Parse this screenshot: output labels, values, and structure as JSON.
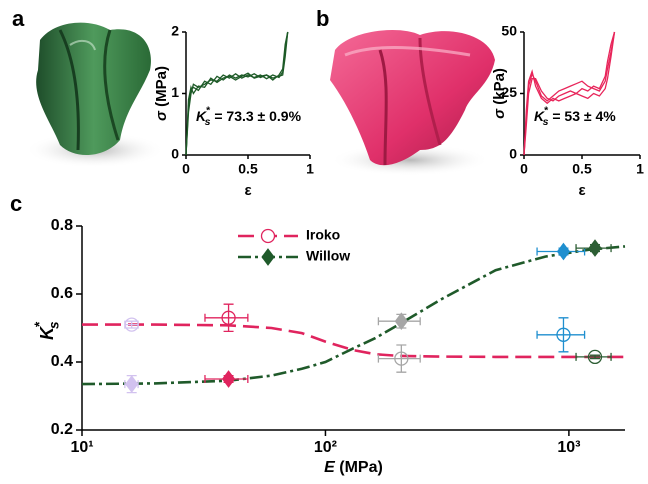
{
  "chart_data": [
    {
      "type": "line",
      "panel": "a",
      "color": "#1d5a27",
      "x_label": "ε",
      "y_label": {
        "symbol": "σ",
        "text": " (MPa)"
      },
      "annotation": {
        "base": "K",
        "sup": "*",
        "sub": "s",
        "text": " = 73.3 ± 0.9%"
      },
      "xlim": [
        0,
        1
      ],
      "ylim": [
        0,
        2
      ],
      "xticks": [
        0,
        0.5,
        1
      ],
      "yticks": [
        0,
        1,
        2
      ],
      "x": [
        0,
        0.02,
        0.04,
        0.06,
        0.1,
        0.15,
        0.2,
        0.25,
        0.3,
        0.35,
        0.4,
        0.45,
        0.5,
        0.55,
        0.6,
        0.65,
        0.7,
        0.75,
        0.78,
        0.8,
        0.82
      ],
      "series": [
        {
          "values": [
            0,
            0.8,
            1.05,
            1.1,
            1.05,
            1.2,
            1.15,
            1.28,
            1.22,
            1.3,
            1.25,
            1.3,
            1.27,
            1.32,
            1.26,
            1.3,
            1.25,
            1.28,
            1.3,
            1.6,
            2.0
          ]
        },
        {
          "values": [
            0,
            0.7,
            1.0,
            1.15,
            1.1,
            1.15,
            1.22,
            1.2,
            1.3,
            1.25,
            1.32,
            1.25,
            1.3,
            1.26,
            1.3,
            1.24,
            1.3,
            1.26,
            1.35,
            1.7,
            2.0
          ]
        },
        {
          "values": [
            0,
            0.9,
            1.1,
            1.0,
            1.12,
            1.1,
            1.25,
            1.18,
            1.25,
            1.28,
            1.22,
            1.28,
            1.33,
            1.25,
            1.28,
            1.3,
            1.22,
            1.3,
            1.4,
            1.8,
            2.0
          ]
        }
      ]
    },
    {
      "type": "line",
      "panel": "b",
      "color": "#e8255a",
      "x_label": "ε",
      "y_label": {
        "symbol": "σ",
        "text": " (kPa)"
      },
      "annotation": {
        "base": "K",
        "sup": "*",
        "sub": "s",
        "text": " = 53 ± 4%"
      },
      "xlim": [
        0,
        1
      ],
      "ylim": [
        0,
        50
      ],
      "xticks": [
        0,
        0.5,
        1
      ],
      "yticks": [
        0,
        25,
        50
      ],
      "x": [
        0,
        0.02,
        0.04,
        0.07,
        0.1,
        0.15,
        0.2,
        0.25,
        0.3,
        0.35,
        0.4,
        0.45,
        0.5,
        0.55,
        0.6,
        0.65,
        0.7,
        0.72,
        0.75,
        0.78
      ],
      "series": [
        {
          "values": [
            0,
            15,
            28,
            33,
            30,
            24,
            22,
            24,
            26,
            27,
            28,
            29,
            30,
            28,
            27,
            26,
            30,
            35,
            42,
            50
          ]
        },
        {
          "values": [
            0,
            12,
            25,
            31,
            31,
            26,
            23,
            22,
            24,
            25,
            26,
            25,
            27,
            26,
            28,
            27,
            32,
            38,
            45,
            50
          ]
        },
        {
          "values": [
            0,
            18,
            30,
            34,
            28,
            23,
            21,
            23,
            22,
            23,
            24,
            25,
            24,
            23,
            25,
            24,
            27,
            31,
            40,
            50
          ]
        }
      ]
    },
    {
      "type": "scatter",
      "panel": "c",
      "x_label": {
        "symbol": "E",
        "text": " (MPa)"
      },
      "y_label": {
        "base": "K",
        "sup": "*",
        "sub": "s"
      },
      "log_x": true,
      "xlim": [
        10,
        1700
      ],
      "ylim": [
        0.2,
        0.8
      ],
      "xticks": [
        {
          "value": 10,
          "label": "10¹"
        },
        {
          "value": 100,
          "label": "10²"
        },
        {
          "value": 1000,
          "label": "10³"
        }
      ],
      "yticks": [
        0.2,
        0.4,
        0.6,
        0.8
      ],
      "series": [
        {
          "name": "Iroko",
          "color": "#e0245e",
          "marker": "circle",
          "dash": "dashed",
          "x": [
            16,
            40,
            205,
            950,
            1280
          ],
          "values": [
            0.51,
            0.53,
            0.41,
            0.48,
            0.415
          ],
          "x_errors": [
            1,
            8,
            40,
            210,
            210
          ],
          "y_errors": [
            0.01,
            0.04,
            0.04,
            0.05,
            0.005
          ],
          "point_colors": [
            "#d2c2ef",
            "#e0245e",
            "#a6a6a6",
            "#1f8fcf",
            "#2d5e34"
          ],
          "fit_x": [
            10,
            20,
            40,
            60,
            80,
            100,
            130,
            160,
            200,
            300,
            500,
            800,
            1200,
            1700
          ],
          "fit_values": [
            0.51,
            0.51,
            0.508,
            0.5,
            0.485,
            0.46,
            0.435,
            0.423,
            0.418,
            0.416,
            0.415,
            0.415,
            0.415,
            0.415
          ]
        },
        {
          "name": "Willow",
          "color": "#1f5a2a",
          "marker": "diamond",
          "dash": "dashdot",
          "x": [
            16,
            40,
            205,
            950,
            1280
          ],
          "values": [
            0.335,
            0.35,
            0.52,
            0.725,
            0.735
          ],
          "x_errors": [
            1,
            8,
            40,
            210,
            210
          ],
          "y_errors": [
            0.025,
            0.01,
            0.02,
            0.01,
            0.01
          ],
          "point_colors": [
            "#d2c2ef",
            "#e0245e",
            "#a6a6a6",
            "#1f8fcf",
            "#2d5e34"
          ],
          "fit_x": [
            10,
            20,
            40,
            60,
            80,
            100,
            130,
            160,
            200,
            300,
            500,
            800,
            1200,
            1700
          ],
          "fit_values": [
            0.335,
            0.337,
            0.345,
            0.36,
            0.38,
            0.4,
            0.44,
            0.47,
            0.51,
            0.585,
            0.67,
            0.71,
            0.73,
            0.74
          ]
        }
      ]
    }
  ]
}
